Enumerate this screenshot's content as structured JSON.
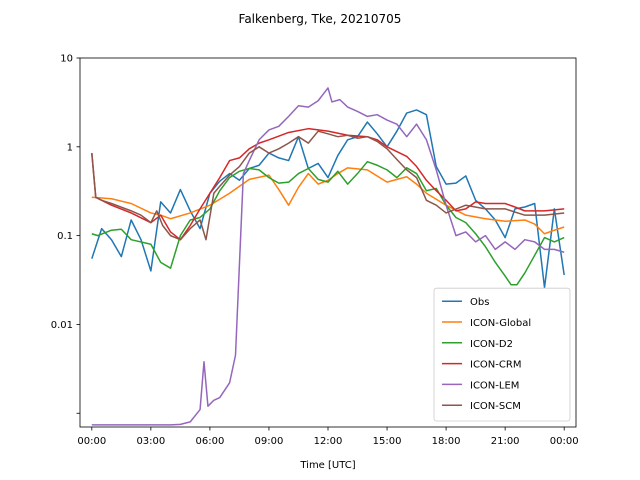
{
  "chart_data": {
    "type": "line",
    "title": "Falkenberg, Tke, 20210705",
    "xlabel": "Time [UTC]",
    "ylabel": "",
    "yscale": "log",
    "ylim": [
      0.0007,
      10
    ],
    "xlim": [
      -0.6,
      24.6
    ],
    "legend_position": "lower-right",
    "grid": false,
    "x_ticks": [
      {
        "value": 0,
        "label": "00:00"
      },
      {
        "value": 3,
        "label": "03:00"
      },
      {
        "value": 6,
        "label": "06:00"
      },
      {
        "value": 9,
        "label": "09:00"
      },
      {
        "value": 12,
        "label": "12:00"
      },
      {
        "value": 15,
        "label": "15:00"
      },
      {
        "value": 18,
        "label": "18:00"
      },
      {
        "value": 21,
        "label": "21:00"
      },
      {
        "value": 24,
        "label": "00:00"
      }
    ],
    "y_ticks": [
      {
        "value": 10,
        "label": "10"
      },
      {
        "value": 1,
        "label": "1"
      },
      {
        "value": 0.1,
        "label": "0.1"
      },
      {
        "value": 0.01,
        "label": "0.01"
      },
      {
        "value": 0.001,
        "label": ""
      }
    ],
    "series": [
      {
        "name": "Obs",
        "color": "#1f77b4",
        "points": [
          [
            0,
            0.055
          ],
          [
            0.5,
            0.12
          ],
          [
            1,
            0.09
          ],
          [
            1.5,
            0.058
          ],
          [
            2,
            0.15
          ],
          [
            2.5,
            0.09
          ],
          [
            3,
            0.04
          ],
          [
            3.5,
            0.24
          ],
          [
            4,
            0.18
          ],
          [
            4.5,
            0.33
          ],
          [
            5,
            0.19
          ],
          [
            5.5,
            0.12
          ],
          [
            6,
            0.3
          ],
          [
            6.5,
            0.41
          ],
          [
            7,
            0.5
          ],
          [
            7.5,
            0.42
          ],
          [
            8,
            0.57
          ],
          [
            8.5,
            0.62
          ],
          [
            9,
            0.85
          ],
          [
            9.5,
            0.75
          ],
          [
            10,
            0.7
          ],
          [
            10.5,
            1.3
          ],
          [
            11,
            0.57
          ],
          [
            11.5,
            0.65
          ],
          [
            12,
            0.45
          ],
          [
            12.5,
            0.8
          ],
          [
            13,
            1.2
          ],
          [
            13.5,
            1.3
          ],
          [
            14,
            1.9
          ],
          [
            14.5,
            1.4
          ],
          [
            15,
            1.0
          ],
          [
            15.5,
            1.5
          ],
          [
            16,
            2.4
          ],
          [
            16.5,
            2.6
          ],
          [
            17,
            2.3
          ],
          [
            17.5,
            0.6
          ],
          [
            18,
            0.38
          ],
          [
            18.5,
            0.39
          ],
          [
            19,
            0.47
          ],
          [
            19.5,
            0.25
          ],
          [
            20,
            0.2
          ],
          [
            20.5,
            0.15
          ],
          [
            21,
            0.095
          ],
          [
            21.5,
            0.2
          ],
          [
            22,
            0.21
          ],
          [
            22.5,
            0.23
          ],
          [
            23,
            0.026
          ],
          [
            23.5,
            0.2
          ],
          [
            24,
            0.036
          ]
        ]
      },
      {
        "name": "ICON-Global",
        "color": "#ff7f0e",
        "points": [
          [
            0,
            0.27
          ],
          [
            1,
            0.26
          ],
          [
            2,
            0.23
          ],
          [
            3,
            0.18
          ],
          [
            3.5,
            0.17
          ],
          [
            4,
            0.155
          ],
          [
            5,
            0.18
          ],
          [
            6,
            0.22
          ],
          [
            7,
            0.3
          ],
          [
            8,
            0.43
          ],
          [
            9,
            0.48
          ],
          [
            9.5,
            0.33
          ],
          [
            10,
            0.22
          ],
          [
            10.5,
            0.35
          ],
          [
            11,
            0.5
          ],
          [
            11.5,
            0.38
          ],
          [
            12,
            0.42
          ],
          [
            12.5,
            0.5
          ],
          [
            13,
            0.58
          ],
          [
            14,
            0.55
          ],
          [
            15,
            0.4
          ],
          [
            16,
            0.46
          ],
          [
            16.5,
            0.38
          ],
          [
            17,
            0.3
          ],
          [
            18,
            0.22
          ],
          [
            19,
            0.17
          ],
          [
            20,
            0.155
          ],
          [
            21,
            0.145
          ],
          [
            22,
            0.15
          ],
          [
            22.5,
            0.135
          ],
          [
            23,
            0.105
          ],
          [
            23.5,
            0.115
          ],
          [
            24,
            0.125
          ]
        ]
      },
      {
        "name": "ICON-D2",
        "color": "#2ca02c",
        "points": [
          [
            0,
            0.105
          ],
          [
            0.3,
            0.1
          ],
          [
            1,
            0.115
          ],
          [
            1.5,
            0.118
          ],
          [
            2,
            0.09
          ],
          [
            3,
            0.08
          ],
          [
            3.5,
            0.05
          ],
          [
            4,
            0.043
          ],
          [
            4.5,
            0.1
          ],
          [
            5,
            0.15
          ],
          [
            5.5,
            0.16
          ],
          [
            6,
            0.2
          ],
          [
            6.5,
            0.32
          ],
          [
            7,
            0.45
          ],
          [
            7.5,
            0.53
          ],
          [
            8,
            0.57
          ],
          [
            8.5,
            0.55
          ],
          [
            9,
            0.45
          ],
          [
            9.5,
            0.39
          ],
          [
            10,
            0.4
          ],
          [
            10.5,
            0.5
          ],
          [
            11,
            0.57
          ],
          [
            11.5,
            0.43
          ],
          [
            12,
            0.4
          ],
          [
            12.5,
            0.53
          ],
          [
            13,
            0.38
          ],
          [
            13.5,
            0.5
          ],
          [
            14,
            0.68
          ],
          [
            14.5,
            0.62
          ],
          [
            15,
            0.55
          ],
          [
            15.5,
            0.45
          ],
          [
            16,
            0.58
          ],
          [
            16.5,
            0.5
          ],
          [
            17,
            0.32
          ],
          [
            17.5,
            0.34
          ],
          [
            18,
            0.22
          ],
          [
            18.5,
            0.16
          ],
          [
            19,
            0.14
          ],
          [
            19.5,
            0.105
          ],
          [
            20,
            0.075
          ],
          [
            20.5,
            0.05
          ],
          [
            21,
            0.035
          ],
          [
            21.3,
            0.028
          ],
          [
            21.6,
            0.028
          ],
          [
            22,
            0.038
          ],
          [
            22.5,
            0.06
          ],
          [
            23,
            0.095
          ],
          [
            23.5,
            0.085
          ],
          [
            24,
            0.095
          ]
        ]
      },
      {
        "name": "ICON-CRM",
        "color": "#d62728",
        "points": [
          [
            0,
            0.85
          ],
          [
            0.2,
            0.27
          ],
          [
            0.5,
            0.25
          ],
          [
            1,
            0.22
          ],
          [
            2,
            0.18
          ],
          [
            3,
            0.14
          ],
          [
            3.5,
            0.17
          ],
          [
            4,
            0.11
          ],
          [
            4.5,
            0.09
          ],
          [
            5,
            0.13
          ],
          [
            5.5,
            0.2
          ],
          [
            6,
            0.3
          ],
          [
            6.5,
            0.45
          ],
          [
            7,
            0.7
          ],
          [
            7.5,
            0.75
          ],
          [
            8,
            0.95
          ],
          [
            8.5,
            1.1
          ],
          [
            9,
            1.2
          ],
          [
            10,
            1.45
          ],
          [
            11,
            1.6
          ],
          [
            12,
            1.5
          ],
          [
            13,
            1.35
          ],
          [
            14,
            1.3
          ],
          [
            14.5,
            1.2
          ],
          [
            15,
            1.0
          ],
          [
            16,
            0.78
          ],
          [
            16.5,
            0.6
          ],
          [
            17,
            0.42
          ],
          [
            17.5,
            0.32
          ],
          [
            18,
            0.25
          ],
          [
            18.5,
            0.19
          ],
          [
            19,
            0.2
          ],
          [
            19.5,
            0.24
          ],
          [
            20,
            0.23
          ],
          [
            21,
            0.23
          ],
          [
            21.5,
            0.21
          ],
          [
            22,
            0.19
          ],
          [
            23,
            0.19
          ],
          [
            24,
            0.2
          ]
        ]
      },
      {
        "name": "ICON-LEM",
        "color": "#9467bd",
        "points": [
          [
            0,
            0.00074
          ],
          [
            1,
            0.00074
          ],
          [
            2,
            0.00074
          ],
          [
            3,
            0.00074
          ],
          [
            4,
            0.00074
          ],
          [
            4.5,
            0.00075
          ],
          [
            5,
            0.0008
          ],
          [
            5.5,
            0.0011
          ],
          [
            5.7,
            0.0038
          ],
          [
            5.9,
            0.0012
          ],
          [
            6.2,
            0.0014
          ],
          [
            6.5,
            0.0015
          ],
          [
            7,
            0.0022
          ],
          [
            7.3,
            0.0045
          ],
          [
            7.7,
            0.5
          ],
          [
            8,
            0.7
          ],
          [
            8.5,
            1.2
          ],
          [
            9,
            1.55
          ],
          [
            9.5,
            1.7
          ],
          [
            10,
            2.2
          ],
          [
            10.5,
            2.9
          ],
          [
            11,
            2.8
          ],
          [
            11.5,
            3.3
          ],
          [
            12,
            4.6
          ],
          [
            12.2,
            3.2
          ],
          [
            12.6,
            3.4
          ],
          [
            13,
            2.8
          ],
          [
            13.5,
            2.5
          ],
          [
            14,
            2.2
          ],
          [
            14.5,
            2.3
          ],
          [
            15,
            2.0
          ],
          [
            15.5,
            1.8
          ],
          [
            16,
            1.3
          ],
          [
            16.5,
            1.8
          ],
          [
            17,
            1.2
          ],
          [
            17.5,
            0.55
          ],
          [
            18,
            0.22
          ],
          [
            18.5,
            0.1
          ],
          [
            19,
            0.11
          ],
          [
            19.5,
            0.085
          ],
          [
            20,
            0.1
          ],
          [
            20.5,
            0.07
          ],
          [
            21,
            0.085
          ],
          [
            21.5,
            0.07
          ],
          [
            22,
            0.09
          ],
          [
            22.5,
            0.085
          ],
          [
            23,
            0.07
          ],
          [
            23.5,
            0.07
          ],
          [
            24,
            0.065
          ]
        ]
      },
      {
        "name": "ICON-SCM",
        "color": "#8c564b",
        "points": [
          [
            0,
            0.85
          ],
          [
            0.2,
            0.27
          ],
          [
            0.5,
            0.25
          ],
          [
            1,
            0.23
          ],
          [
            2,
            0.19
          ],
          [
            2.5,
            0.17
          ],
          [
            3,
            0.14
          ],
          [
            3.3,
            0.19
          ],
          [
            3.6,
            0.13
          ],
          [
            4,
            0.1
          ],
          [
            4.5,
            0.09
          ],
          [
            5,
            0.12
          ],
          [
            5.5,
            0.15
          ],
          [
            5.8,
            0.09
          ],
          [
            6.2,
            0.3
          ],
          [
            6.5,
            0.36
          ],
          [
            7,
            0.48
          ],
          [
            7.5,
            0.6
          ],
          [
            8,
            0.85
          ],
          [
            8.5,
            1.0
          ],
          [
            9,
            0.85
          ],
          [
            9.5,
            0.95
          ],
          [
            10,
            1.1
          ],
          [
            10.5,
            1.3
          ],
          [
            11,
            1.1
          ],
          [
            11.5,
            1.5
          ],
          [
            12,
            1.4
          ],
          [
            12.5,
            1.3
          ],
          [
            13,
            1.35
          ],
          [
            13.5,
            1.25
          ],
          [
            14,
            1.3
          ],
          [
            14.5,
            1.15
          ],
          [
            15,
            0.95
          ],
          [
            15.5,
            0.72
          ],
          [
            16,
            0.55
          ],
          [
            16.5,
            0.45
          ],
          [
            17,
            0.25
          ],
          [
            17.5,
            0.22
          ],
          [
            18,
            0.18
          ],
          [
            19,
            0.22
          ],
          [
            20,
            0.2
          ],
          [
            21,
            0.2
          ],
          [
            22,
            0.17
          ],
          [
            23,
            0.17
          ],
          [
            24,
            0.18
          ]
        ]
      }
    ]
  }
}
